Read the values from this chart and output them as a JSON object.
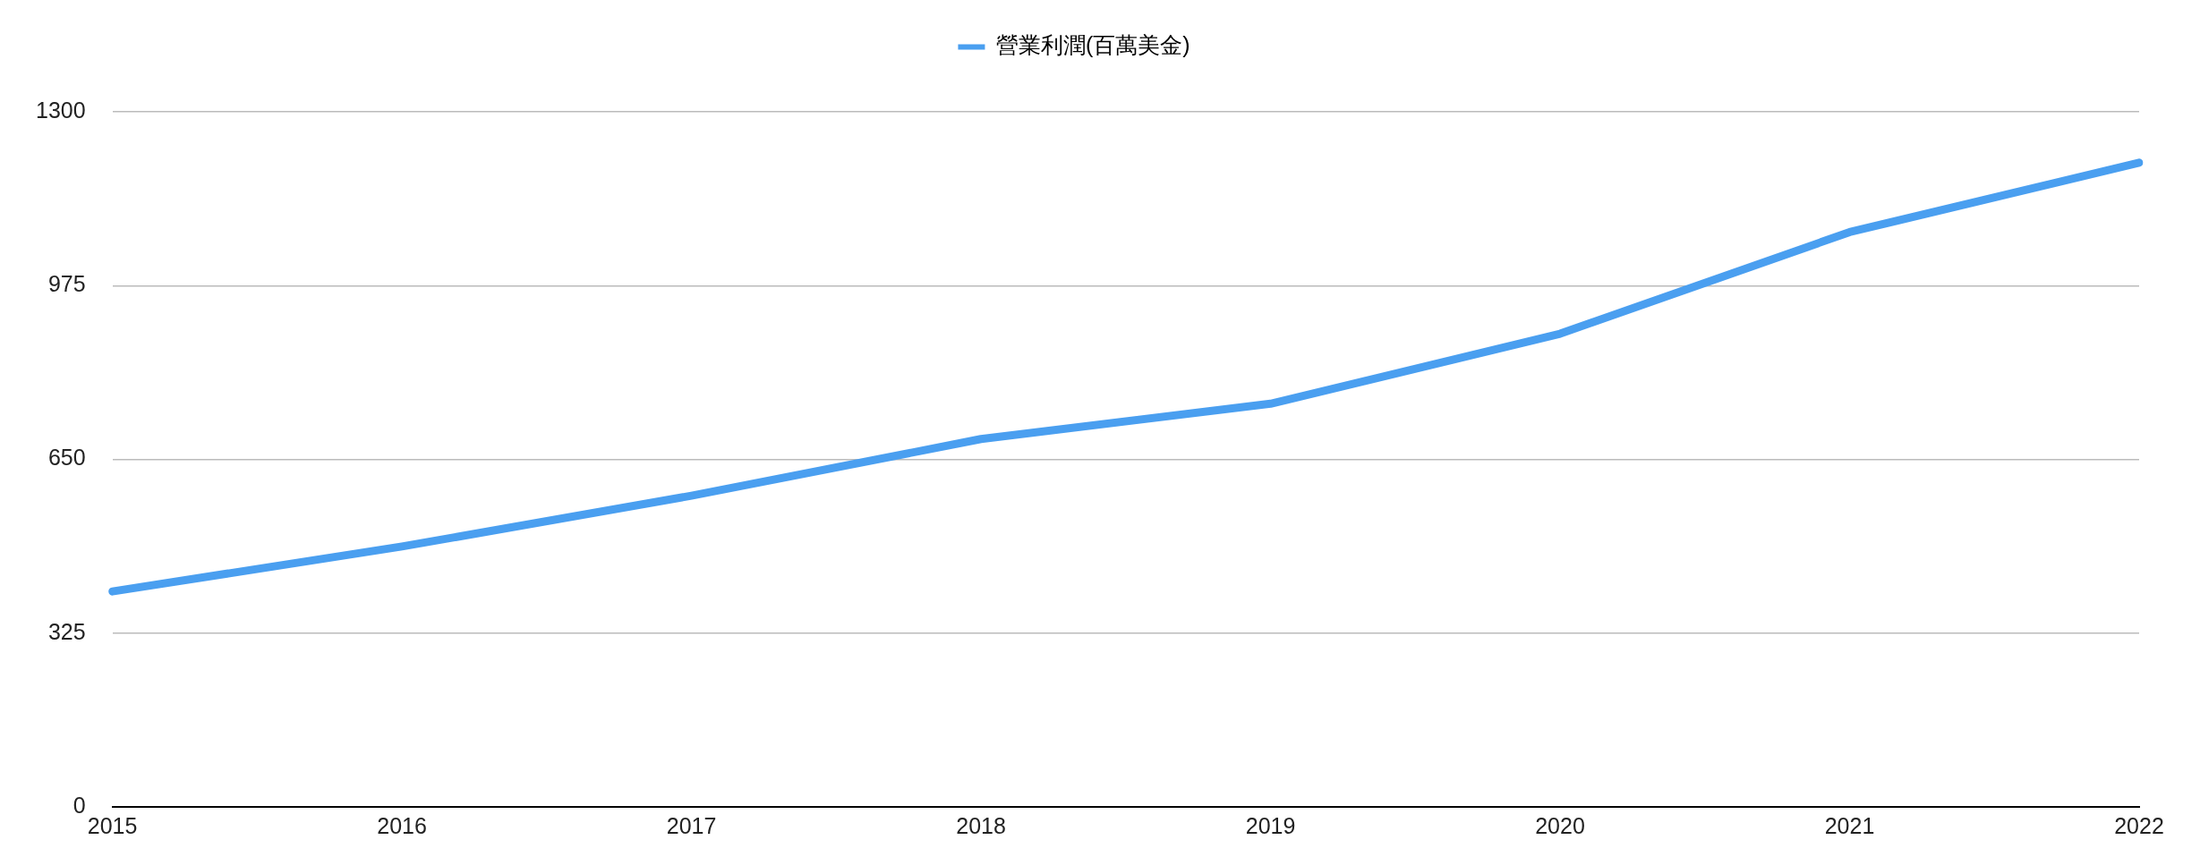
{
  "chart_data": {
    "type": "line",
    "categories": [
      "2015",
      "2016",
      "2017",
      "2018",
      "2019",
      "2020",
      "2021",
      "2022"
    ],
    "series": [
      {
        "name": "營業利潤(百萬美金)",
        "color": "#4a9ff0",
        "values": [
          403,
          487,
          582,
          688,
          754,
          885,
          1075,
          1205
        ]
      }
    ],
    "ylim": [
      0,
      1300
    ],
    "yticks": [
      0,
      325,
      650,
      975,
      1300
    ],
    "grid": "y",
    "legend": "top",
    "marker": "none",
    "line_style": "solid"
  }
}
